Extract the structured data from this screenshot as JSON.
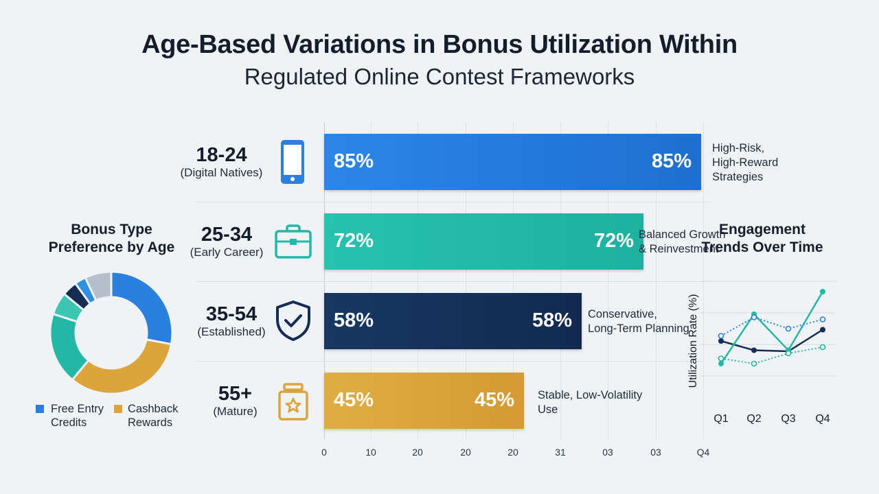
{
  "title": "Age-Based Variations in Bonus Utilization Within",
  "subtitle": "Regulated Online Contest Frameworks",
  "colors": {
    "blue": "#2b7fdf",
    "teal": "#22b8a5",
    "navy": "#152d55",
    "gold": "#dba53c"
  },
  "chart_data": [
    {
      "type": "bar",
      "orientation": "horizontal",
      "categories": [
        "18-24",
        "25-34",
        "35-54",
        "55+"
      ],
      "category_descriptions": [
        "(Digital Natives)",
        "(Early Career)",
        "(Established)",
        "(Mature)"
      ],
      "values": [
        85,
        72,
        58,
        45
      ],
      "value_labels": [
        "85%",
        "72%",
        "58%",
        "45%"
      ],
      "annotations": [
        "High-Risk,\nHigh-Reward\nStrategies",
        "Balanced Growth\n& Reinvestment",
        "Conservative,\nLong-Term Planning",
        "Stable, Low-Volatility\nUse"
      ],
      "icons": [
        "smartphone-icon",
        "briefcase-icon",
        "shield-check-icon",
        "jar-icon"
      ],
      "x_tick_labels": [
        "0",
        "10",
        "20",
        "20",
        "20",
        "31",
        "03",
        "03",
        "Q4"
      ],
      "xlim": [
        0,
        100
      ],
      "grid": true
    },
    {
      "type": "pie",
      "title": "Bonus Type Preference by Age",
      "slices": [
        {
          "label": "Free Entry Credits",
          "value": 28,
          "color": "#2b7fdf"
        },
        {
          "label": "Cashback Rewards",
          "value": 33,
          "color": "#dba53c"
        },
        {
          "label": "",
          "value": 19,
          "color": "#22b8a5"
        },
        {
          "label": "",
          "value": 6,
          "color": "#3cc6b3"
        },
        {
          "label": "",
          "value": 4,
          "color": "#152d55"
        },
        {
          "label": "",
          "value": 3,
          "color": "#2f8fe0"
        },
        {
          "label": "",
          "value": 7,
          "color": "#b6bfcb"
        }
      ],
      "legend": [
        "Free Entry Credits",
        "Cashback Rewards"
      ],
      "legend_position": "bottom",
      "donut": true
    },
    {
      "type": "line",
      "title": "Engagement Trends Over Time",
      "ylabel": "Utilization Rate (%)",
      "categories": [
        "Q1",
        "Q2",
        "Q3",
        "Q4"
      ],
      "ylim": [
        0,
        100
      ],
      "grid": true,
      "series": [
        {
          "values": [
            62,
            53,
            52,
            73
          ],
          "color": "#152d55",
          "style": "solid"
        },
        {
          "values": [
            40,
            88,
            53,
            110
          ],
          "color": "#22b8a5",
          "style": "solid-dotted"
        },
        {
          "values": [
            67,
            85,
            74,
            83
          ],
          "color": "#2b7fdf",
          "style": "dotted"
        },
        {
          "values": [
            45,
            40,
            50,
            56
          ],
          "color": "#22b8a5",
          "style": "dotted"
        }
      ]
    }
  ]
}
